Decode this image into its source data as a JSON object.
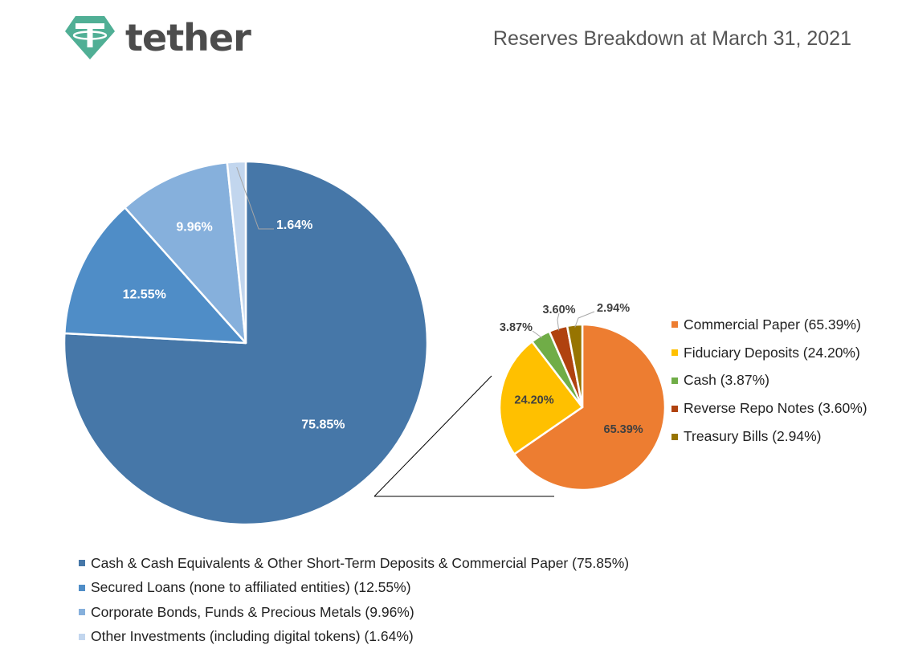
{
  "header": {
    "logo_text": "tether",
    "report_title": "Reserves Breakdown at March 31, 2021"
  },
  "colors": {
    "logo_teal": "#50af95",
    "leader_line": "#a6a6a6",
    "connector_line": "#000000"
  },
  "chart_data": [
    {
      "type": "pie",
      "title": "",
      "start_angle_deg": 0,
      "direction": "clockwise",
      "slices": [
        {
          "label": "Cash & Cash Equivalents & Other Short-Term Deposits & Commercial Paper (75.85%)",
          "value": 75.85,
          "data_label": "75.85%",
          "color": "#4677a8",
          "label_color": "#ffffff"
        },
        {
          "label": "Secured Loans (none to affiliated entities) (12.55%)",
          "value": 12.55,
          "data_label": "12.55%",
          "color": "#4f8dc7",
          "label_color": "#ffffff"
        },
        {
          "label": "Corporate Bonds, Funds & Precious Metals (9.96%)",
          "value": 9.96,
          "data_label": "9.96%",
          "color": "#86b0dc",
          "label_color": "#ffffff"
        },
        {
          "label": "Other Investments (including digital tokens) (1.64%)",
          "value": 1.64,
          "data_label": "1.64%",
          "color": "#c2d6ee",
          "label_color": "#ffffff"
        }
      ],
      "legend_position": "bottom-left"
    },
    {
      "type": "pie",
      "title": "",
      "breakdown_of": "Cash & Cash Equivalents & Other Short-Term Deposits & Commercial Paper (75.85%)",
      "start_angle_deg": 0,
      "direction": "clockwise",
      "slices": [
        {
          "label": "Commercial Paper (65.39%)",
          "value": 65.39,
          "data_label": "65.39%",
          "color": "#ed7d31",
          "label_color": "#404040"
        },
        {
          "label": "Fiduciary Deposits (24.20%)",
          "value": 24.2,
          "data_label": "24.20%",
          "color": "#ffc000",
          "label_color": "#404040"
        },
        {
          "label": "Cash (3.87%)",
          "value": 3.87,
          "data_label": "3.87%",
          "color": "#70ad47",
          "label_color": "#404040"
        },
        {
          "label": "Reverse Repo Notes (3.60%)",
          "value": 3.6,
          "data_label": "3.60%",
          "color": "#b0420f",
          "label_color": "#404040"
        },
        {
          "label": "Treasury Bills (2.94%)",
          "value": 2.94,
          "data_label": "2.94%",
          "color": "#977400",
          "label_color": "#404040"
        }
      ],
      "legend_position": "right"
    }
  ]
}
